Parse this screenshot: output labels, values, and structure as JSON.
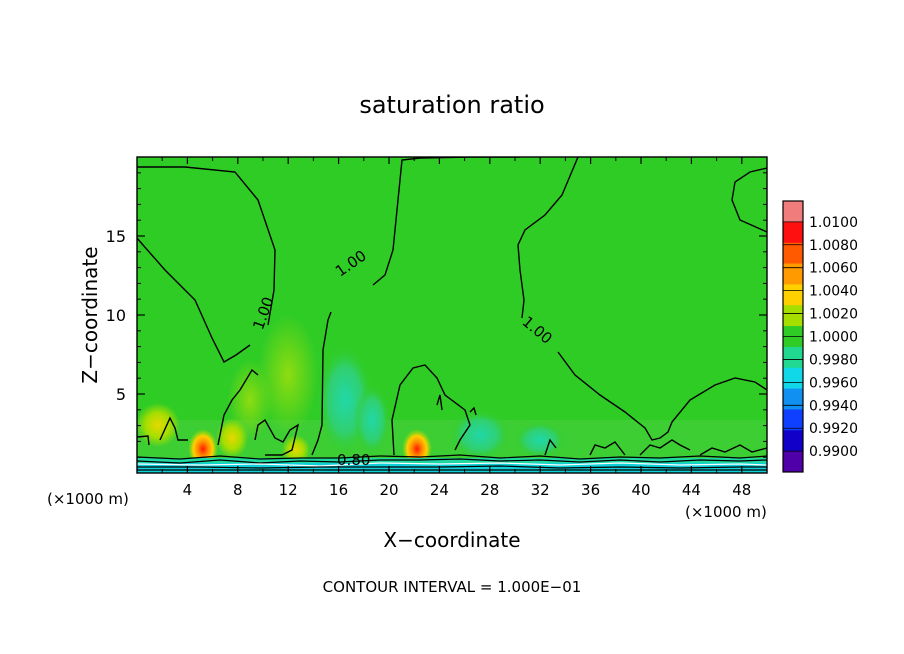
{
  "chart_data": {
    "type": "heatmap",
    "title": "saturation ratio",
    "xlabel": "X−coordinate",
    "ylabel": "Z−coordinate",
    "x_unit_left": "(×1000 m)",
    "x_unit_right": "(×1000 m)",
    "xlim": [
      0,
      50
    ],
    "ylim": [
      0,
      20
    ],
    "x_ticks": [
      4,
      8,
      12,
      16,
      20,
      24,
      28,
      32,
      36,
      40,
      44,
      48
    ],
    "y_ticks": [
      5,
      10,
      15
    ],
    "footer": "CONTOUR INTERVAL = 1.000E−01",
    "contour_labels": [
      {
        "text": "1.00",
        "x": 10.4,
        "z": 10.0
      },
      {
        "text": "1.00",
        "x": 17.2,
        "z": 13.0
      },
      {
        "text": "1.00",
        "x": 31.5,
        "z": 8.8
      },
      {
        "text": "0.80",
        "x": 17.2,
        "z": 0.5
      }
    ],
    "colorbar": {
      "levels": [
        1.01,
        1.008,
        1.006,
        1.004,
        1.002,
        1.0,
        0.998,
        0.996,
        0.994,
        0.992,
        0.99
      ],
      "labels": [
        "1.0100",
        "1.0080",
        "1.0060",
        "1.0040",
        "1.0020",
        "1.0000",
        "0.9980",
        "0.9960",
        "0.9940",
        "0.9920",
        "0.9900"
      ],
      "colors": [
        "#f07c7c",
        "#ff1010",
        "#ff5a00",
        "#ff9a00",
        "#ffd000",
        "#a6de00",
        "#30cc26",
        "#20d890",
        "#10d8e8",
        "#1090f0",
        "#1040ff",
        "#1000c8",
        "#5000a8"
      ]
    }
  }
}
